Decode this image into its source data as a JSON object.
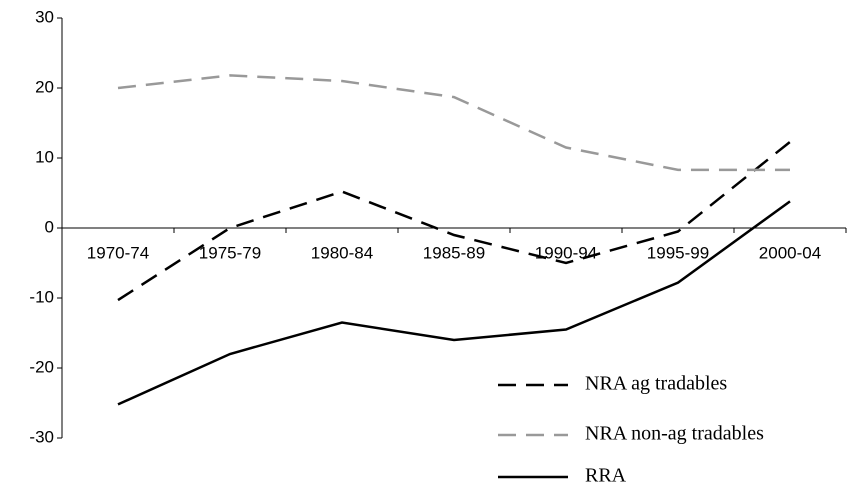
{
  "chart_data": {
    "type": "line",
    "categories": [
      "1970-74",
      "1975-79",
      "1980-84",
      "1985-89",
      "1990-94",
      "1995-99",
      "2000-04"
    ],
    "series": [
      {
        "name": "NRA ag tradables",
        "color": "#000000",
        "dash": "dashed",
        "values": [
          -10.3,
          0,
          5.2,
          -1,
          -5,
          -0.5,
          12.3
        ]
      },
      {
        "name": "NRA non-ag tradables",
        "color": "#999999",
        "dash": "dashed",
        "values": [
          20,
          21.8,
          21,
          18.7,
          11.5,
          8.3,
          8.3
        ]
      },
      {
        "name": "RRA",
        "color": "#000000",
        "dash": "solid",
        "values": [
          -25.2,
          -18,
          -13.5,
          -16,
          -14.5,
          -7.8,
          3.8
        ]
      }
    ],
    "ylim": [
      -30,
      30
    ],
    "yticks": [
      -30,
      -20,
      -10,
      0,
      10,
      20,
      30
    ],
    "grid": false,
    "legend": "bottom-right"
  }
}
